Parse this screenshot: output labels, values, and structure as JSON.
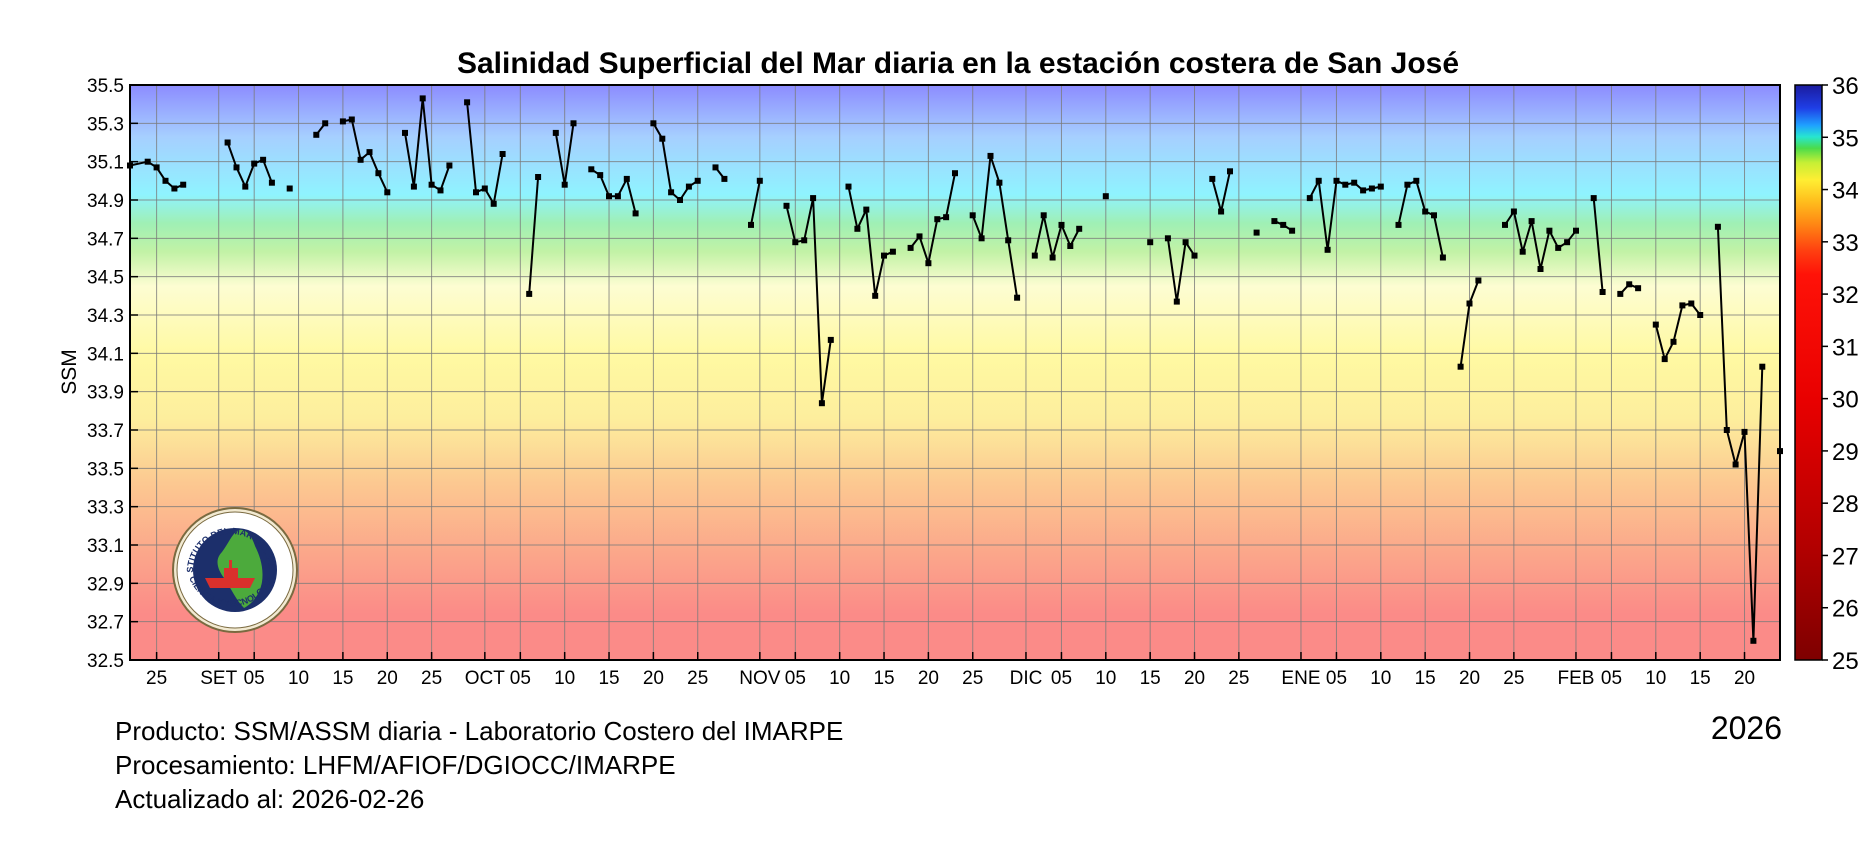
{
  "chart_data": {
    "type": "line",
    "title": "Salinidad Superficial del Mar diaria en la estación costera de San José",
    "ylabel": "SSM",
    "ylim": [
      32.5,
      35.5
    ],
    "y_ticks": [
      "35.5",
      "35.3",
      "35.1",
      "34.9",
      "34.7",
      "34.5",
      "34.3",
      "34.1",
      "33.9",
      "33.7",
      "33.5",
      "33.3",
      "33.1",
      "32.9",
      "32.7",
      "32.5"
    ],
    "x_range": [
      "2025-08-22",
      "2026-02-24"
    ],
    "x_ticks": [
      {
        "date": "2025-08-25",
        "label": "25"
      },
      {
        "date": "2025-09-01",
        "label": "SET"
      },
      {
        "date": "2025-09-05",
        "label": "05"
      },
      {
        "date": "2025-09-10",
        "label": "10"
      },
      {
        "date": "2025-09-15",
        "label": "15"
      },
      {
        "date": "2025-09-20",
        "label": "20"
      },
      {
        "date": "2025-09-25",
        "label": "25"
      },
      {
        "date": "2025-10-01",
        "label": "OCT"
      },
      {
        "date": "2025-10-05",
        "label": "05"
      },
      {
        "date": "2025-10-10",
        "label": "10"
      },
      {
        "date": "2025-10-15",
        "label": "15"
      },
      {
        "date": "2025-10-20",
        "label": "20"
      },
      {
        "date": "2025-10-25",
        "label": "25"
      },
      {
        "date": "2025-11-01",
        "label": "NOV"
      },
      {
        "date": "2025-11-05",
        "label": "05"
      },
      {
        "date": "2025-11-10",
        "label": "10"
      },
      {
        "date": "2025-11-15",
        "label": "15"
      },
      {
        "date": "2025-11-20",
        "label": "20"
      },
      {
        "date": "2025-11-25",
        "label": "25"
      },
      {
        "date": "2025-12-01",
        "label": "DIC"
      },
      {
        "date": "2025-12-05",
        "label": "05"
      },
      {
        "date": "2025-12-10",
        "label": "10"
      },
      {
        "date": "2025-12-15",
        "label": "15"
      },
      {
        "date": "2025-12-20",
        "label": "20"
      },
      {
        "date": "2025-12-25",
        "label": "25"
      },
      {
        "date": "2026-01-01",
        "label": "ENE"
      },
      {
        "date": "2026-01-05",
        "label": "05"
      },
      {
        "date": "2026-01-10",
        "label": "10"
      },
      {
        "date": "2026-01-15",
        "label": "15"
      },
      {
        "date": "2026-01-20",
        "label": "20"
      },
      {
        "date": "2026-01-25",
        "label": "25"
      },
      {
        "date": "2026-02-01",
        "label": "FEB"
      },
      {
        "date": "2026-02-05",
        "label": "05"
      },
      {
        "date": "2026-02-10",
        "label": "10"
      },
      {
        "date": "2026-02-15",
        "label": "15"
      },
      {
        "date": "2026-02-20",
        "label": "20"
      }
    ],
    "colorbar": {
      "range": [
        25,
        36
      ],
      "labels": [
        "36",
        "35",
        "34",
        "33",
        "32",
        "31",
        "30",
        "29",
        "28",
        "27",
        "26",
        "25"
      ]
    },
    "series": [
      {
        "color": "#000000",
        "segments": [
          [
            [
              "2025-08-22",
              35.08
            ],
            [
              "2025-08-24",
              35.1
            ],
            [
              "2025-08-25",
              35.07
            ],
            [
              "2025-08-26",
              35.0
            ],
            [
              "2025-08-27",
              34.96
            ],
            [
              "2025-08-28",
              34.98
            ]
          ],
          [
            [
              "2025-09-02",
              35.2
            ],
            [
              "2025-09-03",
              35.07
            ],
            [
              "2025-09-04",
              34.97
            ],
            [
              "2025-09-05",
              35.09
            ],
            [
              "2025-09-06",
              35.11
            ],
            [
              "2025-09-07",
              34.99
            ]
          ],
          [
            [
              "2025-09-09",
              34.96
            ]
          ],
          [
            [
              "2025-09-12",
              35.24
            ],
            [
              "2025-09-13",
              35.3
            ]
          ],
          [
            [
              "2025-09-15",
              35.31
            ],
            [
              "2025-09-16",
              35.32
            ],
            [
              "2025-09-17",
              35.11
            ],
            [
              "2025-09-18",
              35.15
            ],
            [
              "2025-09-19",
              35.04
            ],
            [
              "2025-09-20",
              34.94
            ]
          ],
          [
            [
              "2025-09-22",
              35.25
            ],
            [
              "2025-09-23",
              34.97
            ],
            [
              "2025-09-24",
              35.43
            ],
            [
              "2025-09-25",
              34.98
            ],
            [
              "2025-09-26",
              34.95
            ],
            [
              "2025-09-27",
              35.08
            ]
          ],
          [
            [
              "2025-09-29",
              35.41
            ],
            [
              "2025-09-30",
              34.94
            ],
            [
              "2025-10-01",
              34.96
            ],
            [
              "2025-10-02",
              34.88
            ],
            [
              "2025-10-03",
              35.14
            ]
          ],
          [
            [
              "2025-10-06",
              34.41
            ],
            [
              "2025-10-07",
              35.02
            ]
          ],
          [
            [
              "2025-10-09",
              35.25
            ],
            [
              "2025-10-10",
              34.98
            ],
            [
              "2025-10-11",
              35.3
            ]
          ],
          [
            [
              "2025-10-13",
              35.06
            ],
            [
              "2025-10-14",
              35.03
            ],
            [
              "2025-10-15",
              34.92
            ],
            [
              "2025-10-16",
              34.92
            ],
            [
              "2025-10-17",
              35.01
            ],
            [
              "2025-10-18",
              34.83
            ]
          ],
          [
            [
              "2025-10-20",
              35.3
            ],
            [
              "2025-10-21",
              35.22
            ],
            [
              "2025-10-22",
              34.94
            ],
            [
              "2025-10-23",
              34.9
            ],
            [
              "2025-10-24",
              34.97
            ],
            [
              "2025-10-25",
              35.0
            ]
          ],
          [
            [
              "2025-10-27",
              35.07
            ],
            [
              "2025-10-28",
              35.01
            ]
          ],
          [
            [
              "2025-10-31",
              34.77
            ],
            [
              "2025-11-01",
              35.0
            ]
          ],
          [
            [
              "2025-11-04",
              34.87
            ],
            [
              "2025-11-05",
              34.68
            ],
            [
              "2025-11-06",
              34.69
            ],
            [
              "2025-11-07",
              34.91
            ],
            [
              "2025-11-08",
              33.84
            ],
            [
              "2025-11-09",
              34.17
            ]
          ],
          [
            [
              "2025-11-11",
              34.97
            ],
            [
              "2025-11-12",
              34.75
            ],
            [
              "2025-11-13",
              34.85
            ],
            [
              "2025-11-14",
              34.4
            ],
            [
              "2025-11-15",
              34.61
            ],
            [
              "2025-11-16",
              34.63
            ]
          ],
          [
            [
              "2025-11-18",
              34.65
            ],
            [
              "2025-11-19",
              34.71
            ],
            [
              "2025-11-20",
              34.57
            ],
            [
              "2025-11-21",
              34.8
            ],
            [
              "2025-11-22",
              34.81
            ],
            [
              "2025-11-23",
              35.04
            ]
          ],
          [
            [
              "2025-11-25",
              34.82
            ],
            [
              "2025-11-26",
              34.7
            ],
            [
              "2025-11-27",
              35.13
            ],
            [
              "2025-11-28",
              34.99
            ],
            [
              "2025-11-29",
              34.69
            ],
            [
              "2025-11-30",
              34.39
            ]
          ],
          [
            [
              "2025-12-02",
              34.61
            ],
            [
              "2025-12-03",
              34.82
            ],
            [
              "2025-12-04",
              34.6
            ],
            [
              "2025-12-05",
              34.77
            ],
            [
              "2025-12-06",
              34.66
            ],
            [
              "2025-12-07",
              34.75
            ]
          ],
          [
            [
              "2025-12-10",
              34.92
            ]
          ],
          [
            [
              "2025-12-15",
              34.68
            ]
          ],
          [
            [
              "2025-12-17",
              34.7
            ],
            [
              "2025-12-18",
              34.37
            ],
            [
              "2025-12-19",
              34.68
            ],
            [
              "2025-12-20",
              34.61
            ]
          ],
          [
            [
              "2025-12-22",
              35.01
            ],
            [
              "2025-12-23",
              34.84
            ],
            [
              "2025-12-24",
              35.05
            ]
          ],
          [
            [
              "2025-12-27",
              34.73
            ]
          ],
          [
            [
              "2025-12-29",
              34.79
            ],
            [
              "2025-12-30",
              34.77
            ],
            [
              "2025-12-31",
              34.74
            ]
          ],
          [
            [
              "2026-01-02",
              34.91
            ],
            [
              "2026-01-03",
              35.0
            ],
            [
              "2026-01-04",
              34.64
            ],
            [
              "2026-01-05",
              35.0
            ],
            [
              "2026-01-06",
              34.98
            ],
            [
              "2026-01-07",
              34.99
            ],
            [
              "2026-01-08",
              34.95
            ],
            [
              "2026-01-09",
              34.96
            ],
            [
              "2026-01-10",
              34.97
            ]
          ],
          [
            [
              "2026-01-12",
              34.77
            ],
            [
              "2026-01-13",
              34.98
            ],
            [
              "2026-01-14",
              35.0
            ],
            [
              "2026-01-15",
              34.84
            ],
            [
              "2026-01-16",
              34.82
            ],
            [
              "2026-01-17",
              34.6
            ]
          ],
          [
            [
              "2026-01-19",
              34.03
            ],
            [
              "2026-01-20",
              34.36
            ],
            [
              "2026-01-21",
              34.48
            ]
          ],
          [
            [
              "2026-01-24",
              34.77
            ],
            [
              "2026-01-25",
              34.84
            ],
            [
              "2026-01-26",
              34.63
            ],
            [
              "2026-01-27",
              34.79
            ],
            [
              "2026-01-28",
              34.54
            ],
            [
              "2026-01-29",
              34.74
            ],
            [
              "2026-01-30",
              34.65
            ],
            [
              "2026-01-31",
              34.68
            ],
            [
              "2026-02-01",
              34.74
            ]
          ],
          [
            [
              "2026-02-03",
              34.91
            ],
            [
              "2026-02-04",
              34.42
            ]
          ],
          [
            [
              "2026-02-06",
              34.41
            ],
            [
              "2026-02-07",
              34.46
            ],
            [
              "2026-02-08",
              34.44
            ]
          ],
          [
            [
              "2026-02-10",
              34.25
            ],
            [
              "2026-02-11",
              34.07
            ],
            [
              "2026-02-12",
              34.16
            ],
            [
              "2026-02-13",
              34.35
            ],
            [
              "2026-02-14",
              34.36
            ],
            [
              "2026-02-15",
              34.3
            ]
          ],
          [
            [
              "2026-02-17",
              34.76
            ],
            [
              "2026-02-18",
              33.7
            ],
            [
              "2026-02-19",
              33.52
            ],
            [
              "2026-02-20",
              33.69
            ],
            [
              "2026-02-21",
              32.6
            ],
            [
              "2026-02-22",
              34.03
            ]
          ],
          [
            [
              "2026-02-24",
              33.59
            ]
          ]
        ]
      }
    ]
  },
  "logo": {
    "ring_text": "INSTITUTO DEL MAR DEL PERU",
    "bottom_text": "CIENCIA Y TECNOLOGIA"
  },
  "footer": {
    "producto": "Producto: SSM/ASSM diaria - Laboratorio Costero del IMARPE",
    "procesamiento": "Procesamiento: LHFM/AFIOF/DGIOCC/IMARPE",
    "actualizado": "Actualizado al: 2026-02-26",
    "year": "2026"
  }
}
